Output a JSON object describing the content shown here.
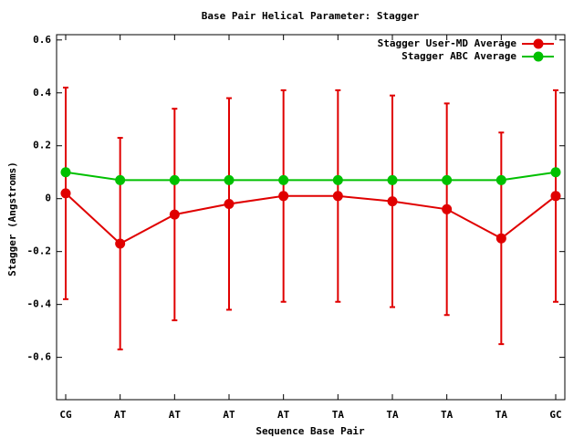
{
  "chart_data": {
    "type": "line",
    "title": "Base Pair Helical Parameter: Stagger",
    "x_label": "Sequence Base Pair",
    "y_label": "Stagger (Angstroms)",
    "categories": [
      "CG",
      "AT",
      "AT",
      "AT",
      "AT",
      "TA",
      "TA",
      "TA",
      "TA",
      "GC"
    ],
    "series": [
      {
        "name": "Stagger User-MD Average",
        "color": "#e00000",
        "values": [
          0.02,
          -0.17,
          -0.06,
          -0.02,
          0.01,
          0.01,
          -0.01,
          -0.04,
          -0.15,
          0.01
        ],
        "errors": [
          0.4,
          0.4,
          0.4,
          0.4,
          0.4,
          0.4,
          0.4,
          0.4,
          0.4,
          0.4
        ]
      },
      {
        "name": "Stagger ABC Average",
        "color": "#00c000",
        "values": [
          0.1,
          0.07,
          0.07,
          0.07,
          0.07,
          0.07,
          0.07,
          0.07,
          0.07,
          0.1
        ]
      }
    ],
    "ylim": [
      -0.76,
      0.62
    ],
    "yticks": [
      -0.6,
      -0.4,
      -0.2,
      0,
      0.2,
      0.4,
      0.6
    ],
    "grid": false,
    "legend": "top-right"
  }
}
